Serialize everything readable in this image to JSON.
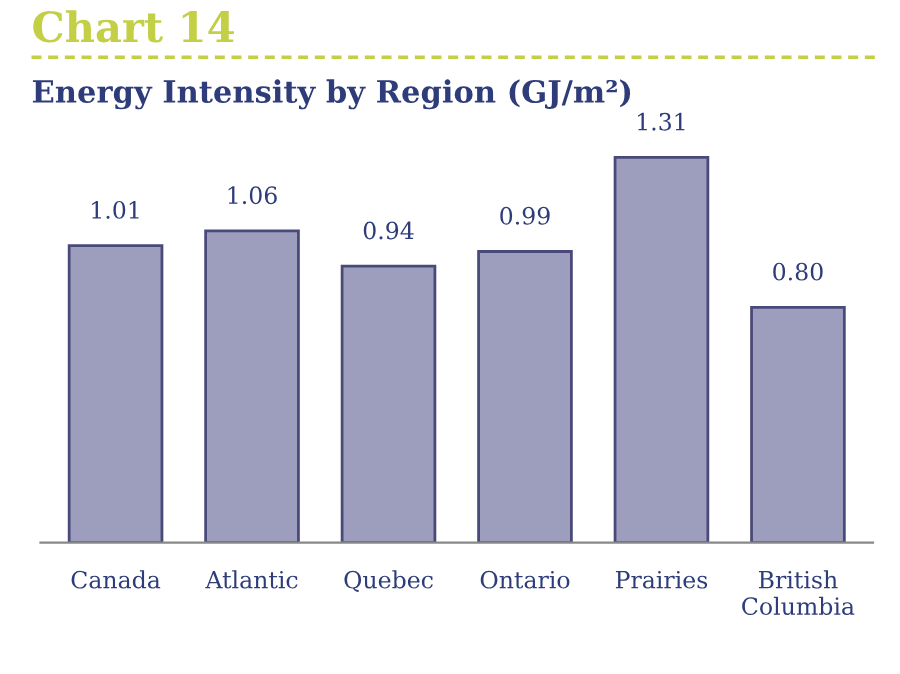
{
  "chart_data": {
    "type": "bar",
    "title": "Chart 14",
    "subtitle": "Energy Intensity by Region (GJ/m²)",
    "categories": [
      "Canada",
      "Atlantic",
      "Quebec",
      "Ontario",
      "Prairies",
      "British\nColumbia"
    ],
    "values": [
      1.01,
      1.06,
      0.94,
      0.99,
      1.31,
      0.8
    ],
    "value_labels": [
      "1.01",
      "1.06",
      "0.94",
      "0.99",
      "1.31",
      "0.80"
    ],
    "color": "#9d9dbd",
    "grid": false,
    "legend": false
  }
}
